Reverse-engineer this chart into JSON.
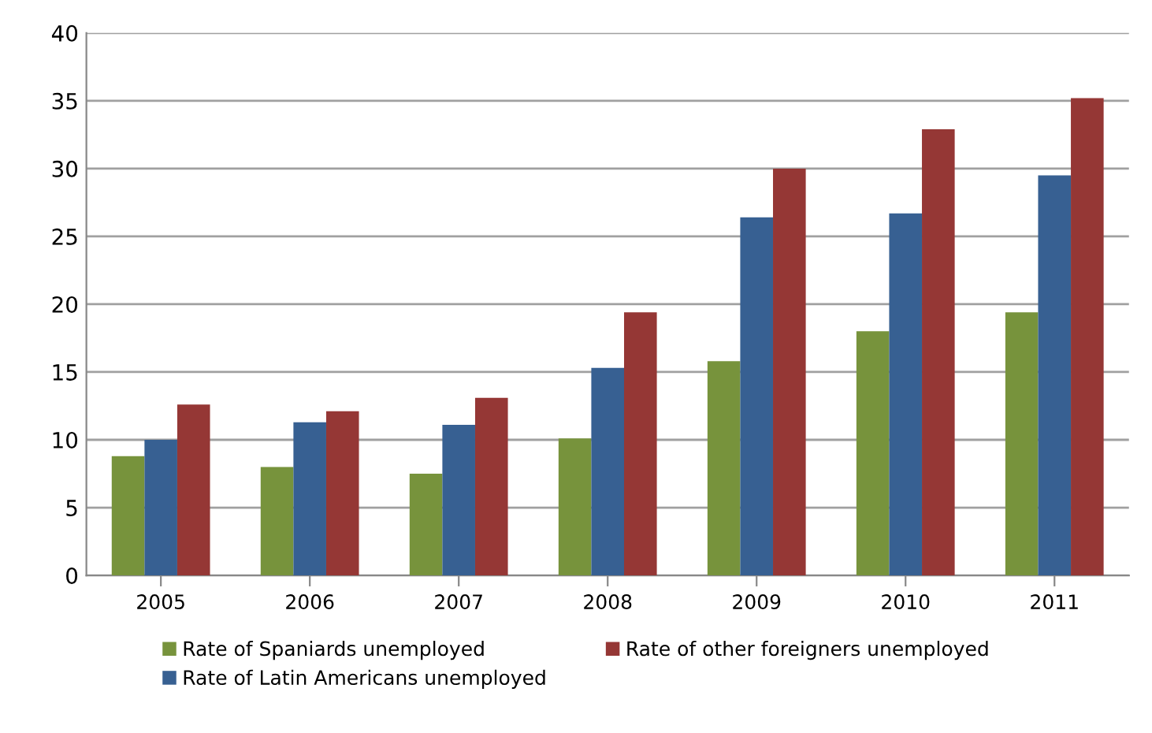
{
  "chart_data": {
    "type": "bar",
    "categories": [
      "2005",
      "2006",
      "2007",
      "2008",
      "2009",
      "2010",
      "2011"
    ],
    "series": [
      {
        "name": "Rate of Spaniards unemployed",
        "color": "#77933c",
        "values": [
          8.8,
          8.0,
          7.5,
          10.1,
          15.8,
          18.0,
          19.4
        ]
      },
      {
        "name": "Rate of Latin Americans unemployed",
        "color": "#376092",
        "values": [
          10.0,
          11.3,
          11.1,
          15.3,
          26.4,
          26.7,
          29.5
        ]
      },
      {
        "name": "Rate of other foreigners unemployed",
        "color": "#953735",
        "values": [
          12.6,
          12.1,
          13.1,
          19.4,
          30.0,
          32.9,
          35.2
        ]
      }
    ],
    "ylim": [
      0,
      40
    ],
    "yticks": [
      0,
      5,
      10,
      15,
      20,
      25,
      30,
      35,
      40
    ],
    "grid": "y",
    "legend": "bottom"
  }
}
